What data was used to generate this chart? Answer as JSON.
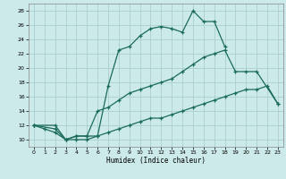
{
  "xlabel": "Humidex (Indice chaleur)",
  "bg_color": "#cceaea",
  "grid_color": "#aacece",
  "line_color": "#1a6b5a",
  "xlim": [
    -0.5,
    23.5
  ],
  "ylim": [
    9,
    29
  ],
  "xticks": [
    0,
    1,
    2,
    3,
    4,
    5,
    6,
    7,
    8,
    9,
    10,
    11,
    12,
    13,
    14,
    15,
    16,
    17,
    18,
    19,
    20,
    21,
    22,
    23
  ],
  "yticks": [
    10,
    12,
    14,
    16,
    18,
    20,
    22,
    24,
    26,
    28
  ],
  "series": [
    {
      "x": [
        0,
        2,
        3,
        4,
        5,
        6,
        7,
        8,
        9,
        10,
        11,
        12,
        13,
        14,
        15,
        16,
        17,
        18
      ],
      "y": [
        12,
        12,
        10,
        10.5,
        10.5,
        10.5,
        17.5,
        22.5,
        23,
        24.5,
        25.5,
        25.8,
        25.5,
        25,
        28,
        26.5,
        26.5,
        23
      ]
    },
    {
      "x": [
        0,
        2,
        3,
        4,
        5,
        6,
        7,
        8,
        9,
        10,
        11,
        12,
        13,
        14,
        15,
        16,
        17,
        18,
        19,
        20,
        21,
        23
      ],
      "y": [
        12,
        11.5,
        10,
        10.5,
        10.5,
        14,
        14.5,
        15.5,
        16.5,
        17,
        17.5,
        18,
        18.5,
        19.5,
        20.5,
        21.5,
        22,
        22.5,
        19.5,
        19.5,
        19.5,
        15
      ]
    },
    {
      "x": [
        0,
        1,
        2,
        3,
        4,
        5,
        6,
        7,
        8,
        9,
        10,
        11,
        12,
        13,
        14,
        15,
        16,
        17,
        18,
        19,
        20,
        21,
        22,
        23
      ],
      "y": [
        12,
        11.5,
        11,
        10,
        10,
        10,
        10.5,
        11,
        11.5,
        12,
        12.5,
        13,
        13,
        13.5,
        14,
        14.5,
        15,
        15.5,
        16,
        16.5,
        17,
        17,
        17.5,
        15
      ]
    }
  ]
}
